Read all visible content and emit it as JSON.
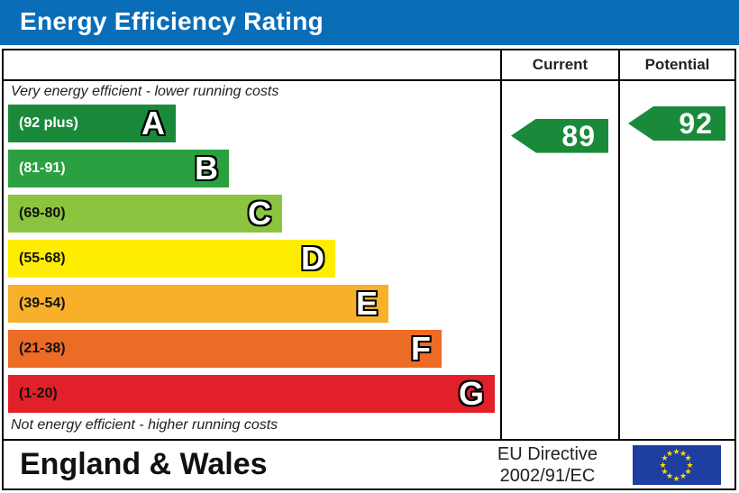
{
  "title": "Energy Efficiency Rating",
  "columns": {
    "current": "Current",
    "potential": "Potential"
  },
  "captions": {
    "top": "Very energy efficient - lower running costs",
    "bottom": "Not energy efficient - higher running costs"
  },
  "footer": {
    "region": "England & Wales",
    "directive_line1": "EU Directive",
    "directive_line2": "2002/91/EC",
    "flag_icon": "eu-flag-icon"
  },
  "chart_data": {
    "type": "bar",
    "title": "Energy Efficiency Rating",
    "categories": [
      "A",
      "B",
      "C",
      "D",
      "E",
      "F",
      "G"
    ],
    "ranges": [
      "(92 plus)",
      "(81-91)",
      "(69-80)",
      "(55-68)",
      "(39-54)",
      "(21-38)",
      "(1-20)"
    ],
    "colors": [
      "#1a8a3a",
      "#2aa040",
      "#8bc43f",
      "#ffed00",
      "#f8b02b",
      "#ec6b25",
      "#e2202a"
    ],
    "range_text_colors": [
      "#ffffff",
      "#ffffff",
      "#111111",
      "#111111",
      "#111111",
      "#111111",
      "#111111"
    ],
    "current": {
      "value": 89,
      "band": "B"
    },
    "potential": {
      "value": 92,
      "band": "A"
    }
  }
}
